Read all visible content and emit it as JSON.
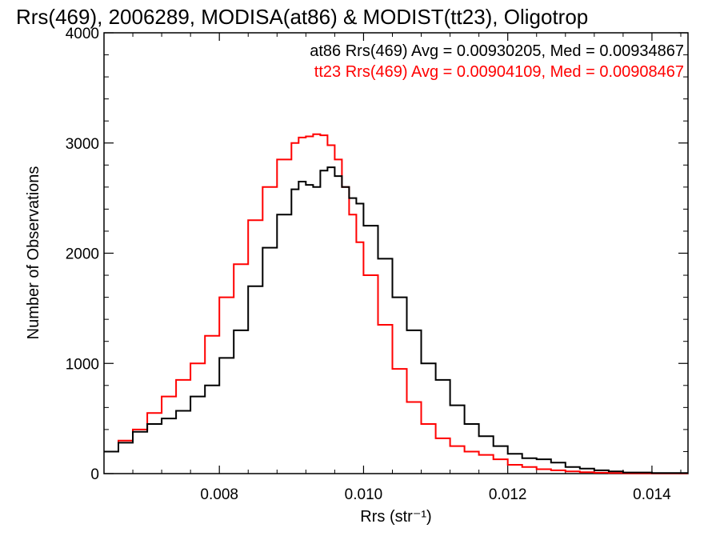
{
  "chart_data": {
    "type": "line",
    "style": "step-histogram",
    "title": "Rrs(469), 2006289, MODISA(at86) & MODIST(tt23), Oligotrop",
    "xlabel": "Rrs (str⁻¹)",
    "ylabel": "Number of Observations",
    "xlim": [
      0.0064,
      0.0145
    ],
    "ylim": [
      0,
      4000
    ],
    "x_ticks": [
      0.008,
      0.01,
      0.012,
      0.014
    ],
    "x_tick_labels": [
      "0.008",
      "0.010",
      "0.012",
      "0.014"
    ],
    "y_ticks": [
      0,
      1000,
      2000,
      3000,
      4000
    ],
    "y_tick_labels": [
      "0",
      "1000",
      "2000",
      "3000",
      "4000"
    ],
    "grid": false,
    "legend_placement": "top-right",
    "annotations": [
      {
        "text": "at86 Rrs(469) Avg = 0.00930205, Med = 0.00934867",
        "color": "#000000"
      },
      {
        "text": "tt23 Rrs(469) Avg = 0.00904109, Med = 0.00908467",
        "color": "#ff0000"
      }
    ],
    "series": [
      {
        "color": "#000000",
        "x": [
          0.0064,
          0.0066,
          0.0068,
          0.007,
          0.0072,
          0.0074,
          0.0076,
          0.0078,
          0.008,
          0.0082,
          0.0084,
          0.0086,
          0.0088,
          0.009,
          0.0091,
          0.0092,
          0.0093,
          0.0094,
          0.0095,
          0.0096,
          0.0097,
          0.0098,
          0.0099,
          0.01,
          0.0102,
          0.0104,
          0.0106,
          0.0108,
          0.011,
          0.0112,
          0.0114,
          0.0116,
          0.0118,
          0.012,
          0.0122,
          0.0124,
          0.0126,
          0.0128,
          0.013,
          0.0132,
          0.0134,
          0.0136,
          0.014,
          0.0145
        ],
        "values": [
          200,
          280,
          380,
          450,
          500,
          570,
          700,
          800,
          1050,
          1300,
          1700,
          2050,
          2350,
          2580,
          2650,
          2620,
          2600,
          2750,
          2780,
          2700,
          2600,
          2500,
          2450,
          2250,
          1950,
          1600,
          1300,
          1000,
          850,
          620,
          450,
          340,
          250,
          180,
          140,
          130,
          100,
          60,
          45,
          30,
          20,
          10,
          5,
          5
        ]
      },
      {
        "color": "#ff0000",
        "x": [
          0.0064,
          0.0066,
          0.0068,
          0.007,
          0.0072,
          0.0074,
          0.0076,
          0.0078,
          0.008,
          0.0082,
          0.0084,
          0.0086,
          0.0088,
          0.009,
          0.0091,
          0.0092,
          0.0093,
          0.0094,
          0.0095,
          0.0096,
          0.0097,
          0.0098,
          0.0099,
          0.01,
          0.0102,
          0.0104,
          0.0106,
          0.0108,
          0.011,
          0.0112,
          0.0114,
          0.0116,
          0.0118,
          0.012,
          0.0122,
          0.0124,
          0.0126,
          0.0128,
          0.013,
          0.0132,
          0.0134,
          0.0136,
          0.014,
          0.0145
        ],
        "values": [
          200,
          300,
          400,
          550,
          700,
          850,
          1000,
          1250,
          1600,
          1900,
          2300,
          2600,
          2850,
          3000,
          3050,
          3060,
          3080,
          3070,
          2980,
          2850,
          2600,
          2350,
          2100,
          1800,
          1350,
          950,
          650,
          450,
          320,
          250,
          200,
          170,
          130,
          80,
          60,
          40,
          30,
          20,
          12,
          8,
          5,
          3,
          2,
          2
        ]
      }
    ]
  }
}
